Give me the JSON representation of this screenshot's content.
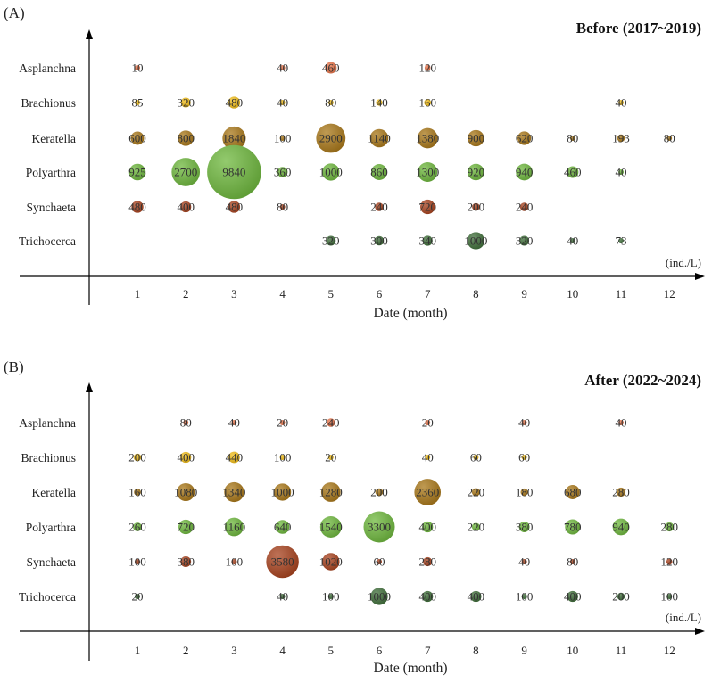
{
  "chart_data": [
    {
      "type": "bubble",
      "panel_label": "(A)",
      "title": "Before (2017~2019)",
      "xlabel": "Date (month)",
      "unit_label": "(ind./L)",
      "x_ticks": [
        "1",
        "2",
        "3",
        "4",
        "5",
        "6",
        "7",
        "8",
        "9",
        "10",
        "11",
        "12"
      ],
      "categories": [
        "Asplanchna",
        "Brachionus",
        "Keratella",
        "Polyarthra",
        "Synchaeta",
        "Trichocerca"
      ],
      "series": [
        {
          "name": "Asplanchna",
          "color": "#e8744a",
          "values": [
            10,
            null,
            null,
            40,
            460,
            null,
            120,
            null,
            null,
            null,
            null,
            null
          ]
        },
        {
          "name": "Brachionus",
          "color": "#f2be1a",
          "values": [
            85,
            320,
            480,
            40,
            80,
            140,
            160,
            null,
            null,
            null,
            40,
            null
          ]
        },
        {
          "name": "Keratella",
          "color": "#a9781a",
          "values": [
            600,
            800,
            1840,
            100,
            2900,
            1140,
            1380,
            900,
            620,
            80,
            193,
            80
          ]
        },
        {
          "name": "Polyarthra",
          "color": "#6fb83e",
          "values": [
            925,
            2700,
            9840,
            360,
            1000,
            860,
            1300,
            920,
            940,
            460,
            40,
            null
          ]
        },
        {
          "name": "Synchaeta",
          "color": "#a8431f",
          "values": [
            480,
            400,
            480,
            80,
            null,
            240,
            720,
            200,
            240,
            null,
            null,
            null
          ]
        },
        {
          "name": "Trichocerca",
          "color": "#3f6e3a",
          "values": [
            null,
            null,
            null,
            null,
            320,
            300,
            340,
            1000,
            320,
            40,
            73,
            null
          ]
        }
      ],
      "grid": false
    },
    {
      "type": "bubble",
      "panel_label": "(B)",
      "title": "After (2022~2024)",
      "xlabel": "Date (month)",
      "unit_label": "(ind./L)",
      "x_ticks": [
        "1",
        "2",
        "3",
        "4",
        "5",
        "6",
        "7",
        "8",
        "9",
        "10",
        "11",
        "12"
      ],
      "categories": [
        "Asplanchna",
        "Brachionus",
        "Keratella",
        "Polyarthra",
        "Synchaeta",
        "Trichocerca"
      ],
      "series": [
        {
          "name": "Asplanchna",
          "color": "#e8744a",
          "values": [
            null,
            80,
            40,
            20,
            240,
            null,
            20,
            null,
            40,
            null,
            40,
            null
          ]
        },
        {
          "name": "Brachionus",
          "color": "#f2be1a",
          "values": [
            200,
            400,
            440,
            100,
            20,
            null,
            40,
            60,
            60,
            null,
            null,
            null
          ]
        },
        {
          "name": "Keratella",
          "color": "#a9781a",
          "values": [
            160,
            1080,
            1340,
            1000,
            1280,
            200,
            2360,
            220,
            180,
            680,
            280,
            null
          ]
        },
        {
          "name": "Polyarthra",
          "color": "#6fb83e",
          "values": [
            260,
            720,
            1160,
            640,
            1540,
            3300,
            400,
            220,
            380,
            780,
            940,
            280
          ]
        },
        {
          "name": "Synchaeta",
          "color": "#a8431f",
          "values": [
            100,
            380,
            100,
            3580,
            1020,
            60,
            280,
            null,
            40,
            80,
            null,
            120
          ]
        },
        {
          "name": "Trichocerca",
          "color": "#3f6e3a",
          "values": [
            20,
            null,
            null,
            40,
            100,
            1000,
            400,
            400,
            100,
            400,
            200,
            100
          ]
        }
      ],
      "grid": false
    }
  ]
}
